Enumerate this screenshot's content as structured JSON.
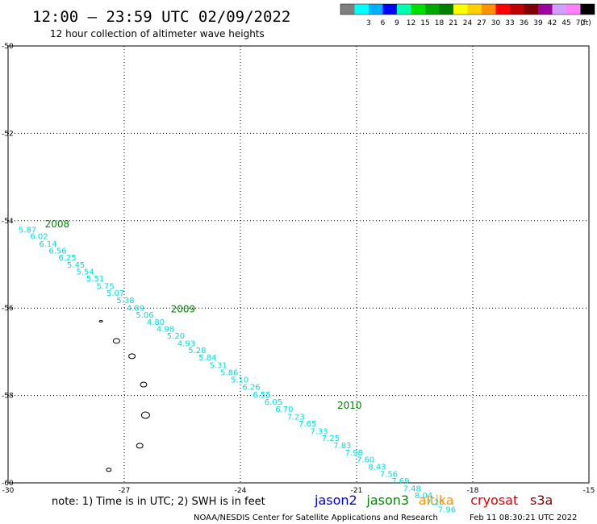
{
  "header": {
    "title": "12:00 – 23:59 UTC 02/09/2022",
    "subtitle": "12 hour collection of altimeter wave heights"
  },
  "legend": {
    "unit": "(ft)",
    "swatches": [
      {
        "color": "#7f7f7f",
        "label": ""
      },
      {
        "color": "#00ffff",
        "label": "3"
      },
      {
        "color": "#00b0ff",
        "label": "6"
      },
      {
        "color": "#0000ff",
        "label": "9"
      },
      {
        "color": "#00ffb0",
        "label": "12"
      },
      {
        "color": "#00e000",
        "label": "15"
      },
      {
        "color": "#00a800",
        "label": "18"
      },
      {
        "color": "#008000",
        "label": "21"
      },
      {
        "color": "#ffff00",
        "label": "24"
      },
      {
        "color": "#ffd000",
        "label": "27"
      },
      {
        "color": "#ff9000",
        "label": "30"
      },
      {
        "color": "#ff0000",
        "label": "33"
      },
      {
        "color": "#c00000",
        "label": "36"
      },
      {
        "color": "#800000",
        "label": "39"
      },
      {
        "color": "#a000a0",
        "label": "42"
      },
      {
        "color": "#d0a0ff",
        "label": "45"
      },
      {
        "color": "#ff80ff",
        "label": "70"
      },
      {
        "color": "#000000",
        "label": ""
      }
    ]
  },
  "axes": {
    "lat_labels": [
      "-50",
      "-52",
      "-54",
      "-56",
      "-58",
      "-60"
    ],
    "lon_labels": [
      "-30",
      "-27",
      "-24",
      "-21",
      "-18",
      "-15"
    ]
  },
  "track": {
    "color": "#00dddd",
    "points": [
      {
        "lon": -29.73,
        "lat": -54.27,
        "swh": "5.87"
      },
      {
        "lon": -29.43,
        "lat": -54.42,
        "swh": "6.02"
      },
      {
        "lon": -29.2,
        "lat": -54.59,
        "swh": "6.14"
      },
      {
        "lon": -28.95,
        "lat": -54.75,
        "swh": "6.56"
      },
      {
        "lon": -28.7,
        "lat": -54.91,
        "swh": "6.25"
      },
      {
        "lon": -28.48,
        "lat": -55.07,
        "swh": "5.45"
      },
      {
        "lon": -28.24,
        "lat": -55.23,
        "swh": "5.54"
      },
      {
        "lon": -27.98,
        "lat": -55.39,
        "swh": "5.51"
      },
      {
        "lon": -27.72,
        "lat": -55.56,
        "swh": "5.75"
      },
      {
        "lon": -27.46,
        "lat": -55.72,
        "swh": "5.07"
      },
      {
        "lon": -27.2,
        "lat": -55.89,
        "swh": "5.38"
      },
      {
        "lon": -26.94,
        "lat": -56.06,
        "swh": "4.89"
      },
      {
        "lon": -26.7,
        "lat": -56.22,
        "swh": "5.06"
      },
      {
        "lon": -26.42,
        "lat": -56.38,
        "swh": "4.80"
      },
      {
        "lon": -26.17,
        "lat": -56.54,
        "swh": "4.98"
      },
      {
        "lon": -25.9,
        "lat": -56.7,
        "swh": "5.20"
      },
      {
        "lon": -25.63,
        "lat": -56.87,
        "swh": "4.93"
      },
      {
        "lon": -25.35,
        "lat": -57.03,
        "swh": "5.28"
      },
      {
        "lon": -25.08,
        "lat": -57.2,
        "swh": "5.84"
      },
      {
        "lon": -24.8,
        "lat": -57.37,
        "swh": "5.31"
      },
      {
        "lon": -24.52,
        "lat": -57.54,
        "swh": "5.86"
      },
      {
        "lon": -24.25,
        "lat": -57.7,
        "swh": "5.10"
      },
      {
        "lon": -23.95,
        "lat": -57.87,
        "swh": "6.26"
      },
      {
        "lon": -23.68,
        "lat": -58.04,
        "swh": "6.55"
      },
      {
        "lon": -23.38,
        "lat": -58.21,
        "swh": "6.05"
      },
      {
        "lon": -23.1,
        "lat": -58.38,
        "swh": "6.70"
      },
      {
        "lon": -22.8,
        "lat": -58.55,
        "swh": "7.23"
      },
      {
        "lon": -22.5,
        "lat": -58.71,
        "swh": "7.65"
      },
      {
        "lon": -22.2,
        "lat": -58.88,
        "swh": "7.33"
      },
      {
        "lon": -21.9,
        "lat": -59.04,
        "swh": "7.25"
      },
      {
        "lon": -21.6,
        "lat": -59.21,
        "swh": "7.83"
      },
      {
        "lon": -21.3,
        "lat": -59.37,
        "swh": "7.98"
      },
      {
        "lon": -21.0,
        "lat": -59.53,
        "swh": "7.60"
      },
      {
        "lon": -20.7,
        "lat": -59.7,
        "swh": "8.43"
      },
      {
        "lon": -20.4,
        "lat": -59.86,
        "swh": "7.56"
      },
      {
        "lon": -20.1,
        "lat": -60.02,
        "swh": "7.69"
      },
      {
        "lon": -19.8,
        "lat": -60.19,
        "swh": "7.48"
      },
      {
        "lon": -19.5,
        "lat": -60.35,
        "swh": "8.04"
      },
      {
        "lon": -19.2,
        "lat": -60.51,
        "swh": "7.20"
      },
      {
        "lon": -18.9,
        "lat": -60.67,
        "swh": "7.96"
      }
    ],
    "time_labels": [
      {
        "text": "2008",
        "lon": -29.05,
        "lat": -54.15
      },
      {
        "text": "2009",
        "lon": -25.8,
        "lat": -56.1
      },
      {
        "text": "2010",
        "lon": -21.5,
        "lat": -58.3
      }
    ]
  },
  "islands": [
    {
      "lon": -27.6,
      "lat": -56.3,
      "dx": 2,
      "dy": 1
    },
    {
      "lon": -27.2,
      "lat": -56.75,
      "dx": 4,
      "dy": 3
    },
    {
      "lon": -26.8,
      "lat": -57.1,
      "dx": 4,
      "dy": 3
    },
    {
      "lon": -26.5,
      "lat": -57.75,
      "dx": 4,
      "dy": 3
    },
    {
      "lon": -26.45,
      "lat": -58.45,
      "dx": 5,
      "dy": 4
    },
    {
      "lon": -26.6,
      "lat": -59.15,
      "dx": 4,
      "dy": 3
    },
    {
      "lon": -27.4,
      "lat": -59.7,
      "dx": 3,
      "dy": 2
    }
  ],
  "footer": {
    "note": "note: 1) Time is in UTC; 2) SWH is in feet",
    "satellites": [
      {
        "name": "jason2",
        "color": "#0000dd"
      },
      {
        "name": "jason3",
        "color": "#008800"
      },
      {
        "name": "altika",
        "color": "#ff9000"
      },
      {
        "name": "cryosat",
        "color": "#dd0000"
      },
      {
        "name": "s3a",
        "color": "#880000"
      }
    ],
    "credit": "NOAA/NESDIS Center for Satellite Applications and Research",
    "timestamp": "Feb 11 08:30:21 UTC 2022"
  }
}
